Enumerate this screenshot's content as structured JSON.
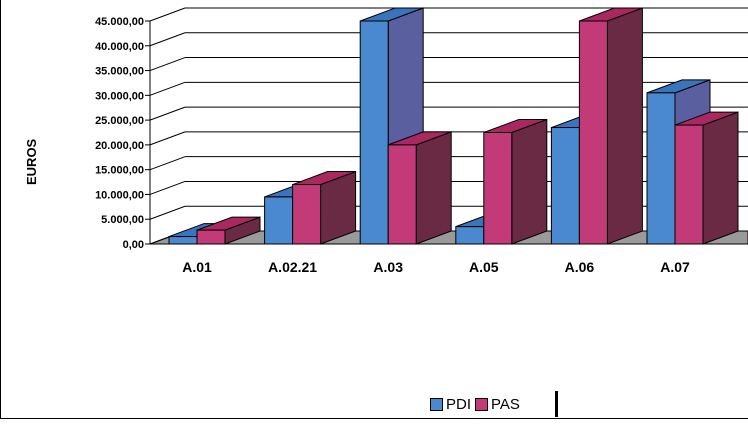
{
  "chart_data": {
    "type": "bar",
    "title": "",
    "xlabel": "",
    "ylabel": "EUROS",
    "ylim": [
      0,
      45000
    ],
    "y_ticks": [
      0,
      5000,
      10000,
      15000,
      20000,
      25000,
      30000,
      35000,
      40000,
      45000
    ],
    "y_tick_labels": [
      "0,00",
      "5.000,00",
      "10.000,00",
      "15.000,00",
      "20.000,00",
      "25.000,00",
      "30.000,00",
      "35.000,00",
      "40.000,00",
      "45.000,00"
    ],
    "grid": true,
    "style": "3d-clustered",
    "legend_position": "bottom",
    "categories": [
      "A.01",
      "A.02.21",
      "A.03",
      "A.05",
      "A.06",
      "A.07"
    ],
    "series": [
      {
        "name": "PDI",
        "values": [
          1500,
          9500,
          45000,
          3500,
          23500,
          30500
        ],
        "color_front": "#4a88cf",
        "color_side": "#5a5fa0",
        "color_top": "#3a74bd"
      },
      {
        "name": "PAS",
        "values": [
          2800,
          12000,
          20000,
          22500,
          45000,
          24000
        ],
        "color_front": "#c23a78",
        "color_side": "#6b2a44",
        "color_top": "#a8285f"
      }
    ]
  }
}
